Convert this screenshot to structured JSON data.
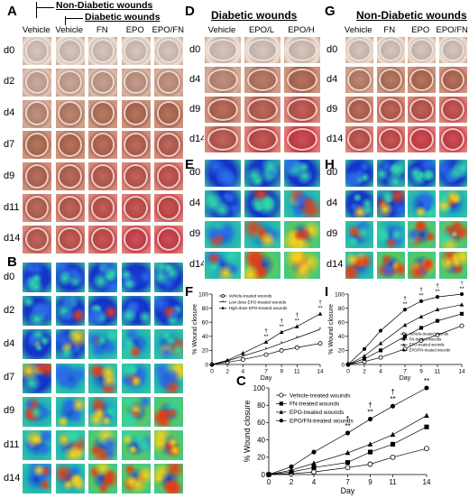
{
  "panels": {
    "A": {
      "label": "A",
      "header_top": "Non-Diabetic wounds",
      "header_sub": "Diabetic wounds",
      "columns": [
        "Vehicle",
        "Vehicle",
        "FN",
        "EPO",
        "EPO/FN"
      ],
      "rows": [
        "d0",
        "d2",
        "d4",
        "d7",
        "d9",
        "d11",
        "d14"
      ]
    },
    "B": {
      "label": "B",
      "rows": [
        "d0",
        "d2",
        "d4",
        "d7",
        "d9",
        "d11",
        "d14"
      ]
    },
    "D": {
      "label": "D",
      "header": "Diabetic wounds",
      "columns": [
        "Vehicle",
        "EPO/L",
        "EPO/H"
      ],
      "rows": [
        "d0",
        "d4",
        "d9",
        "d14"
      ]
    },
    "E": {
      "label": "E",
      "rows": [
        "d0",
        "d4",
        "d9",
        "d14"
      ]
    },
    "G": {
      "label": "G",
      "header": "Non-Diabetic wounds",
      "columns": [
        "Vehicle",
        "FN",
        "EPO",
        "EPO/FN"
      ],
      "rows": [
        "d0",
        "d4",
        "d9",
        "d14"
      ]
    },
    "H": {
      "label": "H",
      "rows": [
        "d0",
        "d4",
        "d9",
        "d14"
      ]
    },
    "F": {
      "label": "F"
    },
    "I": {
      "label": "I"
    },
    "C": {
      "label": "C"
    }
  },
  "colors": {
    "photo_early": "#d8c8bc",
    "photo_mid": "#b57a62",
    "photo_late": "#cf4a52",
    "heat_low": "#1030c8",
    "heat_mid": "#28d0a0",
    "heat_high": "#e03a10"
  },
  "chart_data": [
    {
      "panel": "F",
      "type": "line",
      "xlabel": "Day",
      "ylabel": "% Wound closure",
      "x": [
        0,
        2,
        4,
        7,
        9,
        11,
        14
      ],
      "xlim": [
        0,
        14
      ],
      "ylim": [
        0,
        100
      ],
      "xticks": [
        "0",
        "2",
        "4",
        "7",
        "9",
        "11",
        "14"
      ],
      "yticks": [
        "0",
        "20",
        "40",
        "60",
        "80",
        "100"
      ],
      "legend_position": "top-left",
      "series": [
        {
          "name": "Vehicle-treated wounds",
          "marker": "open-circle",
          "values": [
            0,
            3,
            7,
            14,
            20,
            24,
            30
          ]
        },
        {
          "name": "Low dose EPO-treated wounds",
          "marker": "star",
          "values": [
            0,
            5,
            12,
            22,
            30,
            38,
            50
          ]
        },
        {
          "name": "High-dose EPO-treated wounds",
          "marker": "filled-triangle",
          "values": [
            0,
            6,
            16,
            32,
            46,
            54,
            72
          ]
        }
      ],
      "annotations": [
        "*",
        "**",
        "†"
      ]
    },
    {
      "panel": "I",
      "type": "line",
      "xlabel": "Day",
      "ylabel": "% Wound closure",
      "x": [
        0,
        2,
        4,
        7,
        9,
        11,
        14
      ],
      "xlim": [
        0,
        14
      ],
      "ylim": [
        0,
        100
      ],
      "xticks": [
        "0",
        "2",
        "4",
        "7",
        "9",
        "11",
        "14"
      ],
      "yticks": [
        "0",
        "20",
        "40",
        "60",
        "80",
        "100"
      ],
      "legend_position": "center-right",
      "series": [
        {
          "name": "Vehicle-treated wounds",
          "marker": "open-circle",
          "values": [
            0,
            4,
            10,
            22,
            34,
            42,
            55
          ]
        },
        {
          "name": "FN-treated wounds",
          "marker": "filled-square",
          "values": [
            0,
            8,
            20,
            40,
            52,
            62,
            72
          ]
        },
        {
          "name": "EPO-treated wounds",
          "marker": "filled-triangle",
          "values": [
            0,
            12,
            30,
            56,
            68,
            78,
            85
          ]
        },
        {
          "name": "EPO/FN-treated wounds",
          "marker": "filled-circle",
          "values": [
            0,
            22,
            48,
            78,
            90,
            96,
            100
          ]
        }
      ],
      "annotations": [
        "*",
        "**",
        "†"
      ]
    },
    {
      "panel": "C",
      "type": "line",
      "xlabel": "Day",
      "ylabel": "% Wound closure",
      "x": [
        0,
        2,
        4,
        7,
        9,
        11,
        14
      ],
      "xlim": [
        0,
        14
      ],
      "ylim": [
        0,
        100
      ],
      "xticks": [
        "0",
        "2",
        "4",
        "7",
        "9",
        "11",
        "14"
      ],
      "yticks": [
        "0",
        "20",
        "40",
        "60",
        "80",
        "100"
      ],
      "legend_position": "top-left",
      "series": [
        {
          "name": "Vehicle-treated wounds",
          "marker": "open-circle",
          "values": [
            0,
            1,
            3,
            8,
            12,
            20,
            30
          ]
        },
        {
          "name": "FN-treated wounds",
          "marker": "filled-square",
          "values": [
            0,
            3,
            8,
            14,
            26,
            35,
            55
          ]
        },
        {
          "name": "EPO-treated wounds",
          "marker": "filled-triangle",
          "values": [
            0,
            5,
            13,
            25,
            35,
            46,
            68
          ]
        },
        {
          "name": "EPO/FN-treated wounds",
          "marker": "filled-circle",
          "values": [
            0,
            9,
            26,
            48,
            64,
            79,
            100
          ]
        }
      ],
      "annotations": [
        "*",
        "**",
        "†"
      ]
    }
  ]
}
